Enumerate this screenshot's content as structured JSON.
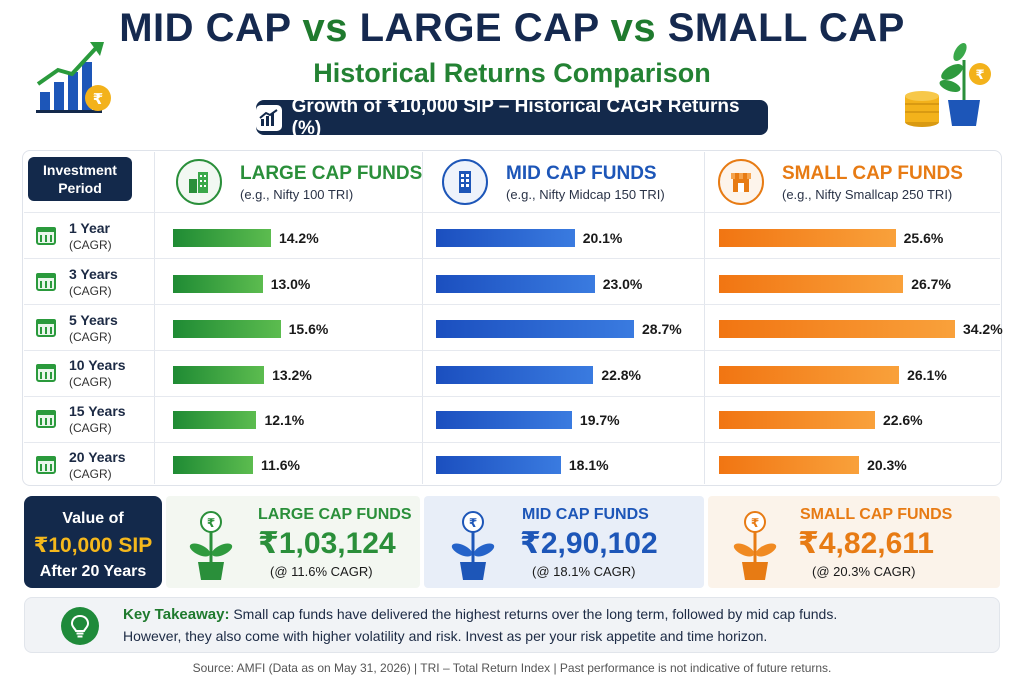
{
  "header": {
    "title_part1": "MID CAP",
    "title_vs1": "vs",
    "title_part2": "LARGE CAP",
    "title_vs2": "vs",
    "title_part3": "SMALL CAP",
    "subtitle": "Historical Returns Comparison",
    "pill": "Growth of ₹10,000 SIP – Historical CAGR Returns (%)"
  },
  "table": {
    "period_header_line1": "Investment",
    "period_header_line2": "Period",
    "columns": [
      {
        "title": "LARGE CAP FUNDS",
        "sub": "(e.g., Nifty 100 TRI)",
        "color": "#2a8f3a",
        "icon": "buildings-icon"
      },
      {
        "title": "MID CAP FUNDS",
        "sub": "(e.g., Nifty Midcap 150 TRI)",
        "color": "#1d56b8",
        "icon": "office-building-icon"
      },
      {
        "title": "SMALL CAP FUNDS",
        "sub": "(e.g., Nifty Smallcap 250 TRI)",
        "color": "#e77b14",
        "icon": "shop-icon"
      }
    ],
    "rows": [
      {
        "period": "1 Year",
        "sub": "(CAGR)"
      },
      {
        "period": "3 Years",
        "sub": "(CAGR)"
      },
      {
        "period": "5 Years",
        "sub": "(CAGR)"
      },
      {
        "period": "10 Years",
        "sub": "(CAGR)"
      },
      {
        "period": "15 Years",
        "sub": "(CAGR)"
      },
      {
        "period": "20 Years",
        "sub": "(CAGR)"
      }
    ]
  },
  "chart_data": {
    "type": "bar",
    "categories": [
      "1 Year",
      "3 Years",
      "5 Years",
      "10 Years",
      "15 Years",
      "20 Years"
    ],
    "series": [
      {
        "name": "LARGE CAP FUNDS",
        "values": [
          14.2,
          13.0,
          15.6,
          13.2,
          12.1,
          11.6
        ],
        "labels": [
          "14.2%",
          "13.0%",
          "15.6%",
          "13.2%",
          "12.1%",
          "11.6%"
        ],
        "color": "#2f9a3e"
      },
      {
        "name": "MID CAP FUNDS",
        "values": [
          20.1,
          23.0,
          28.7,
          22.8,
          19.7,
          18.1
        ],
        "labels": [
          "20.1%",
          "23.0%",
          "28.7%",
          "22.8%",
          "19.7%",
          "18.1%"
        ],
        "color": "#2563c9"
      },
      {
        "name": "SMALL CAP FUNDS",
        "values": [
          25.6,
          26.7,
          34.2,
          26.1,
          22.6,
          20.3
        ],
        "labels": [
          "25.6%",
          "26.7%",
          "34.2%",
          "26.1%",
          "22.6%",
          "20.3%"
        ],
        "color": "#f07f12"
      }
    ],
    "orientation": "horizontal",
    "unit": "%"
  },
  "summary": {
    "box_line1": "Value of",
    "box_line2": "₹10,000 SIP",
    "box_line3": "After 20 Years",
    "cards": [
      {
        "name": "LARGE CAP FUNDS",
        "value": "₹1,03,124",
        "note": "(@ 11.6% CAGR)",
        "color": "#2a8f3a",
        "bg": "#f3f7f1"
      },
      {
        "name": "MID CAP FUNDS",
        "value": "₹2,90,102",
        "note": "(@ 18.1% CAGR)",
        "color": "#1d56b8",
        "bg": "#e8eef8"
      },
      {
        "name": "SMALL CAP FUNDS",
        "value": "₹4,82,611",
        "note": "(@ 20.3% CAGR)",
        "color": "#e77b14",
        "bg": "#fbf3ea"
      }
    ]
  },
  "takeaway": {
    "label": "Key Takeaway:",
    "line1": "Small cap funds have delivered the highest returns over the long term, followed by mid cap funds.",
    "line2": "However, they also come with higher volatility and risk. Invest as per your risk appetite and time horizon."
  },
  "footer": "Source: AMFI (Data as on May 31, 2026)   |   TRI – Total Return Index   |   Past performance is not indicative of future returns."
}
